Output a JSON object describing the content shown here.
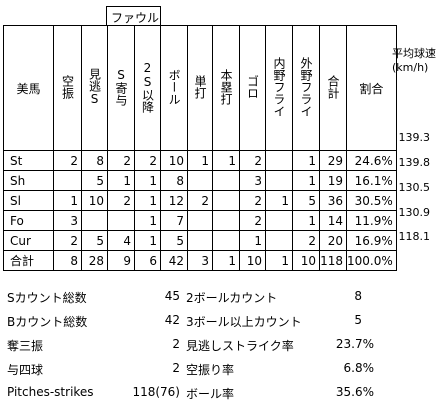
{
  "foul_label": "ファウル",
  "speed_header": {
    "line1": "平均球速",
    "line2": "(km/h)"
  },
  "headers": [
    "美馬",
    "空振",
    "見逃S",
    "S寄与",
    "2S以降",
    "ボール",
    "単打",
    "本塁打",
    "ゴロ",
    "内野フライ",
    "外野フライ",
    "合計",
    "割合"
  ],
  "rows": [
    {
      "label": "St",
      "cells": [
        "2",
        "8",
        "2",
        "2",
        "10",
        "1",
        "1",
        "2",
        "",
        "1",
        "29",
        "24.6%"
      ],
      "speed": "139.3"
    },
    {
      "label": "Sh",
      "cells": [
        "",
        "5",
        "1",
        "1",
        "8",
        "",
        "",
        "3",
        "",
        "1",
        "19",
        "16.1%"
      ],
      "speed": "139.8"
    },
    {
      "label": "Sl",
      "cells": [
        "1",
        "10",
        "2",
        "1",
        "12",
        "2",
        "",
        "2",
        "1",
        "5",
        "36",
        "30.5%"
      ],
      "speed": "130.5"
    },
    {
      "label": "Fo",
      "cells": [
        "3",
        "",
        "",
        "1",
        "7",
        "",
        "",
        "2",
        "",
        "1",
        "14",
        "11.9%"
      ],
      "speed": "130.9"
    },
    {
      "label": "Cur",
      "cells": [
        "2",
        "5",
        "4",
        "1",
        "5",
        "",
        "",
        "1",
        "",
        "2",
        "20",
        "16.9%"
      ],
      "speed": "118.1"
    },
    {
      "label": "合計",
      "cells": [
        "8",
        "28",
        "9",
        "6",
        "42",
        "3",
        "1",
        "10",
        "1",
        "10",
        "118",
        "100.0%"
      ],
      "speed": ""
    }
  ],
  "summary_left": [
    {
      "label": "Sカウント総数",
      "value": "45"
    },
    {
      "label": "Bカウント総数",
      "value": "42"
    },
    {
      "label": "奪三振",
      "value": "2"
    },
    {
      "label": "与四球",
      "value": "2"
    },
    {
      "label": "Pitches-strikes",
      "value": "118(76)"
    }
  ],
  "summary_right": [
    {
      "label": "2ボールカウント",
      "value": "8"
    },
    {
      "label": "3ボール以上カウント",
      "value": "5"
    },
    {
      "label": "見逃しストライク率",
      "value": "23.7%"
    },
    {
      "label": "空振り率",
      "value": "6.8%"
    },
    {
      "label": "ボール率",
      "value": "35.6%"
    }
  ]
}
